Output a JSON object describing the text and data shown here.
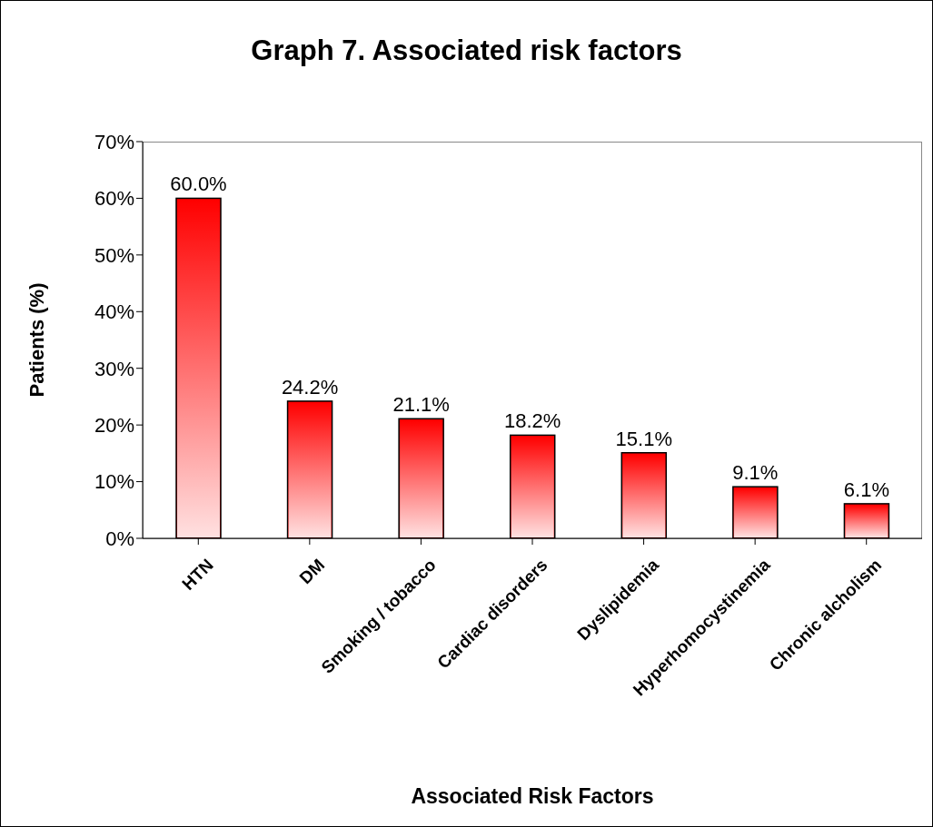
{
  "chart_data": {
    "type": "bar",
    "title": "Graph 7. Associated risk factors",
    "xlabel": "Associated Risk Factors",
    "ylabel": "Patients (%)",
    "categories": [
      "HTN",
      "DM",
      "Smoking / tobacco",
      "Cardiac disorders",
      "Dyslipidemia",
      "Hyperhomocystinemia",
      "Chronic alcholism"
    ],
    "values": [
      60.0,
      24.2,
      21.1,
      18.2,
      15.1,
      9.1,
      6.1
    ],
    "value_labels": [
      "60.0%",
      "24.2%",
      "21.1%",
      "18.2%",
      "15.1%",
      "9.1%",
      "6.1%"
    ],
    "color": "#ff0000",
    "ylim": [
      0,
      70
    ],
    "yticks": [
      {
        "value": 0,
        "label": "0%"
      },
      {
        "value": 10,
        "label": "10%"
      },
      {
        "value": 20,
        "label": "20%"
      },
      {
        "value": 30,
        "label": "30%"
      },
      {
        "value": 40,
        "label": "40%"
      },
      {
        "value": 50,
        "label": "50%"
      },
      {
        "value": 60,
        "label": "60%"
      },
      {
        "value": 70,
        "label": "70%"
      }
    ],
    "grid": false,
    "legend": false
  }
}
